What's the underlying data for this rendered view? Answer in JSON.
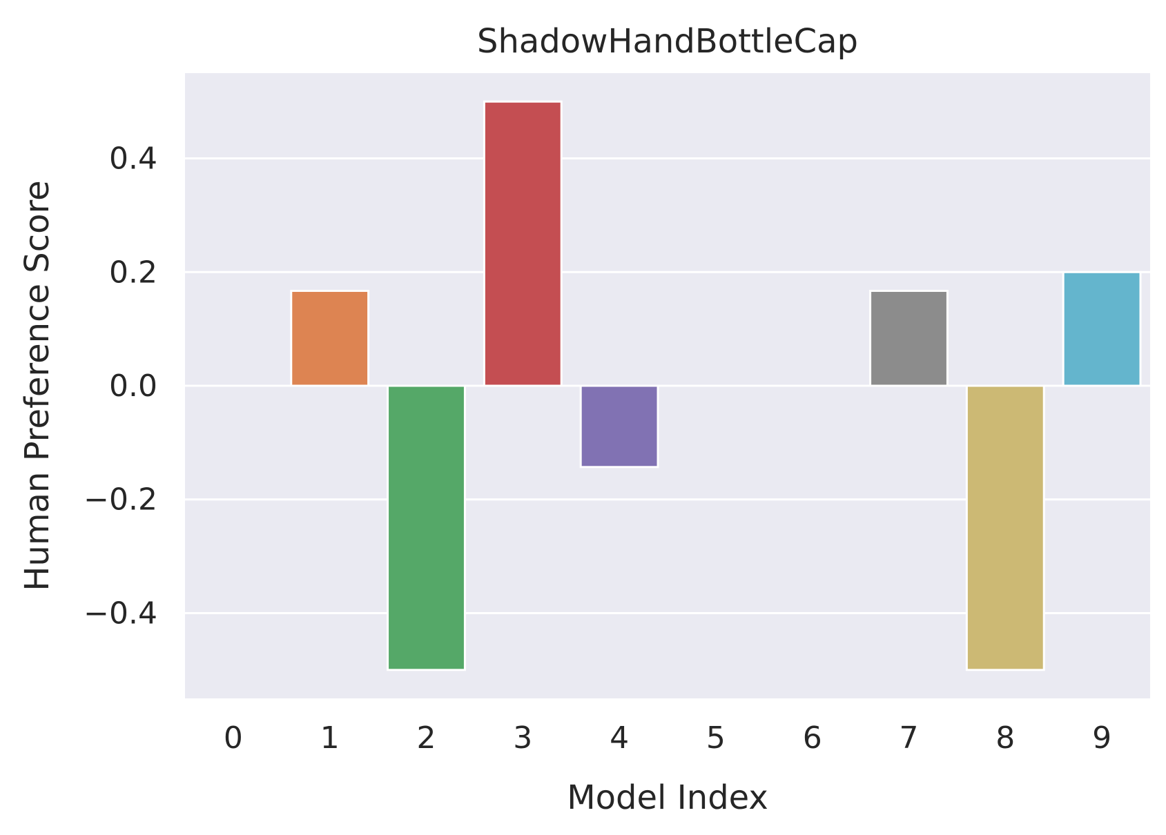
{
  "chart_data": {
    "type": "bar",
    "title": "ShadowHandBottleCap",
    "xlabel": "Model Index",
    "ylabel": "Human Preference Score",
    "categories": [
      "0",
      "1",
      "2",
      "3",
      "4",
      "5",
      "6",
      "7",
      "8",
      "9"
    ],
    "values": [
      0.0,
      0.167,
      -0.5,
      0.5,
      -0.143,
      0.0,
      0.0,
      0.167,
      -0.5,
      0.2
    ],
    "colors": [
      "#4c72b0",
      "#dd8452",
      "#55a868",
      "#c44e52",
      "#8172b3",
      "#937860",
      "#da8bc3",
      "#8c8c8c",
      "#ccb974",
      "#64b5cd"
    ],
    "ylim": [
      -0.55,
      0.55
    ],
    "yticks": [
      -0.4,
      -0.2,
      0.0,
      0.2,
      0.4
    ],
    "ytick_labels": [
      "−0.4",
      "−0.2",
      "0.0",
      "0.2",
      "0.4"
    ],
    "grid": true,
    "background": "#eaeaf2"
  }
}
